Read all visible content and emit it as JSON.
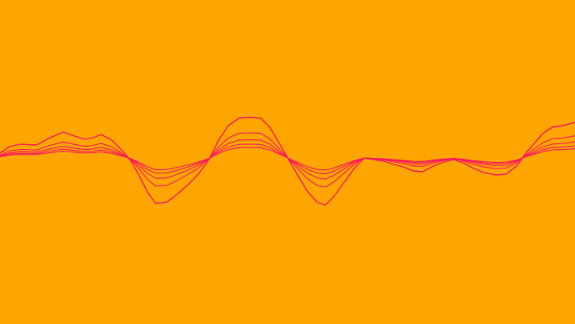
{
  "colors": {
    "background": "#FFA500",
    "line": "#FF1A5E"
  },
  "waves": [
    {
      "amplitude": 1.0
    },
    {
      "amplitude": 0.62
    },
    {
      "amplitude": 0.45
    },
    {
      "amplitude": 0.34
    },
    {
      "amplitude": 0.26
    }
  ]
}
